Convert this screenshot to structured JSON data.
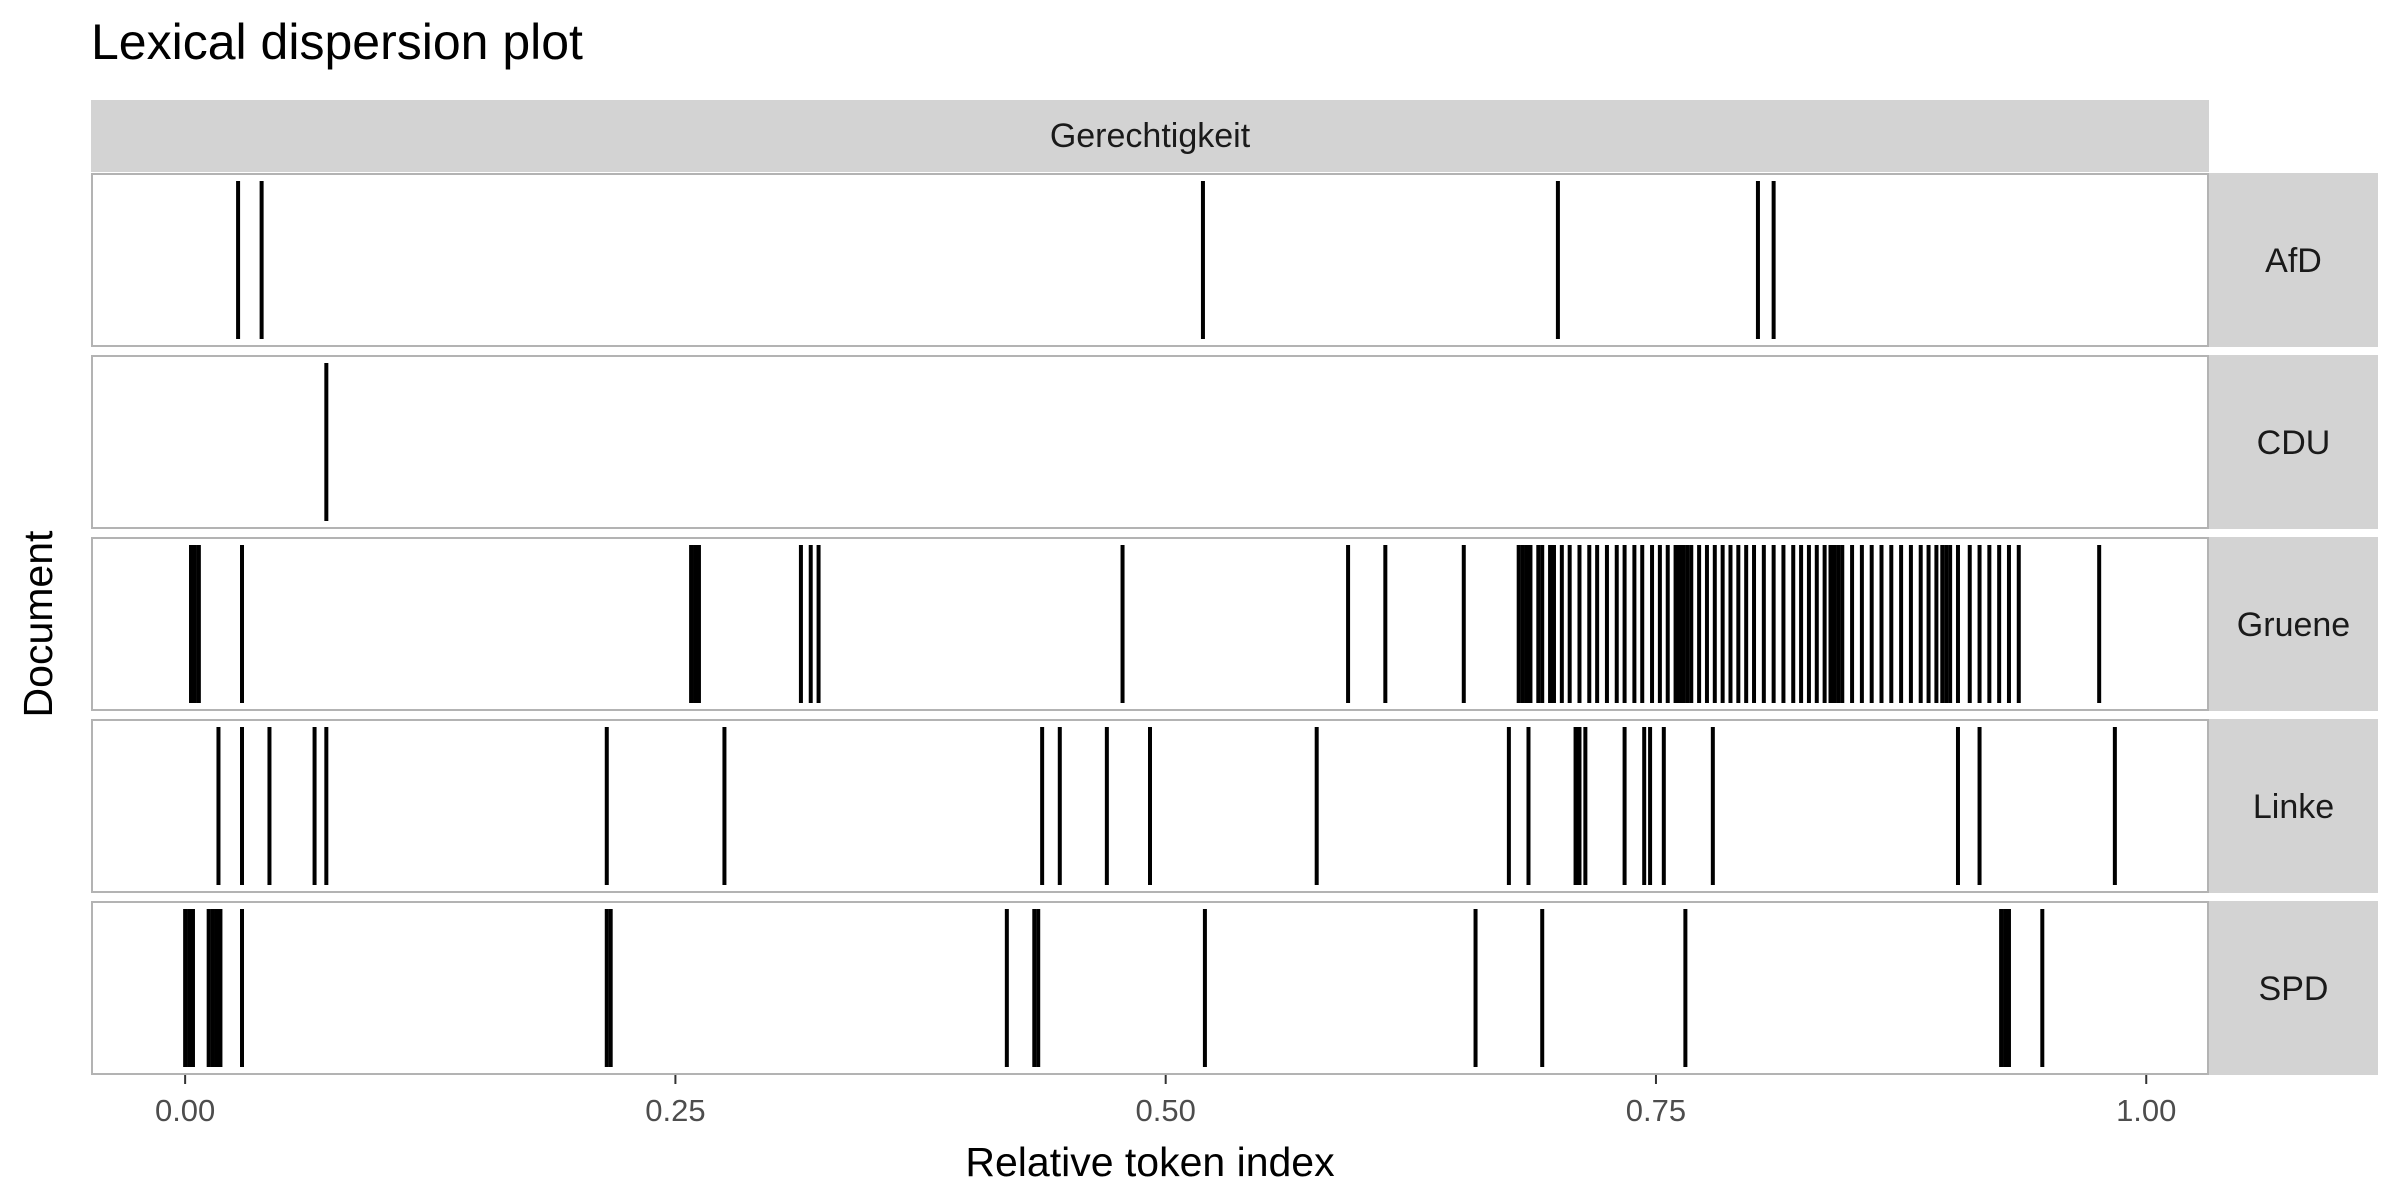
{
  "chart_data": {
    "type": "lexical-dispersion",
    "title": "Lexical dispersion plot",
    "xlabel": "Relative token index",
    "ylabel": "Document",
    "facet_top": "Gerechtigkeit",
    "xlim": [
      -0.048,
      1.032
    ],
    "x_ticks": [
      0,
      0.25,
      0.5,
      0.75,
      1
    ],
    "x_tick_labels": [
      "0.00",
      "0.25",
      "0.50",
      "0.75",
      "1.00"
    ],
    "grid": false,
    "colors": {
      "strip": "#d3d3d3",
      "panel_border": "#b3b3b3",
      "line": "#000000"
    },
    "series": [
      {
        "name": "AfD",
        "x": [
          0.027,
          0.039,
          0.519,
          0.7,
          0.802,
          0.81
        ]
      },
      {
        "name": "CDU",
        "x": [
          0.072
        ]
      },
      {
        "name": "Gruene",
        "x": [
          0.003,
          0.005,
          0.007,
          0.029,
          0.258,
          0.26,
          0.262,
          0.314,
          0.319,
          0.323,
          0.478,
          0.593,
          0.612,
          0.652,
          0.68,
          0.682,
          0.684,
          0.686,
          0.69,
          0.692,
          0.696,
          0.698,
          0.702,
          0.706,
          0.711,
          0.716,
          0.72,
          0.725,
          0.73,
          0.734,
          0.739,
          0.743,
          0.748,
          0.752,
          0.756,
          0.76,
          0.762,
          0.764,
          0.766,
          0.768,
          0.772,
          0.776,
          0.78,
          0.784,
          0.788,
          0.792,
          0.796,
          0.8,
          0.805,
          0.81,
          0.815,
          0.82,
          0.824,
          0.828,
          0.832,
          0.836,
          0.839,
          0.841,
          0.843,
          0.845,
          0.85,
          0.855,
          0.86,
          0.865,
          0.87,
          0.875,
          0.88,
          0.885,
          0.889,
          0.893,
          0.896,
          0.898,
          0.9,
          0.904,
          0.91,
          0.915,
          0.92,
          0.925,
          0.93,
          0.935,
          0.976
        ]
      },
      {
        "name": "Linke",
        "x": [
          0.017,
          0.029,
          0.043,
          0.066,
          0.072,
          0.215,
          0.275,
          0.437,
          0.446,
          0.47,
          0.492,
          0.577,
          0.675,
          0.685,
          0.709,
          0.711,
          0.714,
          0.734,
          0.744,
          0.747,
          0.754,
          0.779,
          0.904,
          0.915,
          0.984
        ]
      },
      {
        "name": "SPD",
        "x": [
          0.0,
          0.002,
          0.004,
          0.012,
          0.014,
          0.016,
          0.018,
          0.029,
          0.215,
          0.217,
          0.419,
          0.433,
          0.435,
          0.52,
          0.658,
          0.692,
          0.765,
          0.926,
          0.928,
          0.93,
          0.947
        ]
      }
    ]
  }
}
